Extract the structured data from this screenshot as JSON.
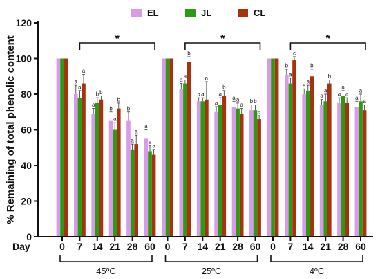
{
  "chart_data": {
    "type": "bar",
    "ylabel": "% Remaining of total phenolic content",
    "ylim": [
      0,
      120
    ],
    "yticks": [
      0,
      20,
      40,
      60,
      80,
      100,
      120
    ],
    "day_label": "Day",
    "series": [
      {
        "name": "EL",
        "color": "#d79bea"
      },
      {
        "name": "JL",
        "color": "#2c9b14"
      },
      {
        "name": "CL",
        "color": "#a8320e"
      }
    ],
    "groups": [
      {
        "temperature": "45ºC",
        "days": [
          "0",
          "7",
          "14",
          "21",
          "28",
          "60"
        ],
        "values": [
          [
            100,
            100,
            100
          ],
          [
            80,
            78,
            86
          ],
          [
            69,
            75,
            77
          ],
          [
            65,
            60,
            72
          ],
          [
            65,
            49,
            52
          ],
          [
            55,
            48,
            46
          ]
        ],
        "errors": [
          [
            0,
            0,
            0
          ],
          [
            5,
            4,
            5
          ],
          [
            3,
            3,
            2
          ],
          [
            5,
            4,
            3
          ],
          [
            5,
            3,
            5
          ],
          [
            5,
            3,
            3
          ]
        ],
        "letters": [
          [
            "",
            "",
            ""
          ],
          [
            "a",
            "a",
            "a"
          ],
          [
            "a",
            "b",
            "b"
          ],
          [
            "b",
            "a",
            "b"
          ],
          [
            "b",
            "a",
            "a"
          ],
          [
            "a",
            "a",
            "a"
          ]
        ],
        "significance": "*"
      },
      {
        "temperature": "25ºC",
        "days": [
          "0",
          "7",
          "14",
          "21",
          "28",
          "60"
        ],
        "values": [
          [
            100,
            100,
            100
          ],
          [
            83,
            86,
            98
          ],
          [
            76,
            76,
            77
          ],
          [
            70,
            74,
            79
          ],
          [
            73,
            72,
            69
          ],
          [
            71,
            71,
            66
          ]
        ],
        "errors": [
          [
            0,
            0,
            0
          ],
          [
            3,
            2,
            3
          ],
          [
            2,
            2,
            10
          ],
          [
            3,
            4,
            3
          ],
          [
            3,
            3,
            3
          ],
          [
            3,
            3,
            2
          ]
        ],
        "letters": [
          [
            "",
            "",
            ""
          ],
          [
            "a",
            "a",
            "b"
          ],
          [
            "a",
            "a",
            "a"
          ],
          [
            "a",
            "a",
            "b"
          ],
          [
            "a",
            "a",
            "a"
          ],
          [
            "b",
            "b",
            "a"
          ]
        ],
        "significance": "*"
      },
      {
        "temperature": "4ºC",
        "days": [
          "0",
          "7",
          "14",
          "21",
          "28",
          "60"
        ],
        "values": [
          [
            100,
            100,
            100
          ],
          [
            91,
            86,
            99
          ],
          [
            80,
            82,
            90
          ],
          [
            74,
            76,
            86
          ],
          [
            75,
            79,
            75
          ],
          [
            73,
            76,
            71
          ]
        ],
        "errors": [
          [
            0,
            0,
            0
          ],
          [
            3,
            3,
            2
          ],
          [
            3,
            3,
            4
          ],
          [
            3,
            4,
            2
          ],
          [
            3,
            3,
            3
          ],
          [
            3,
            4,
            3
          ]
        ],
        "letters": [
          [
            "",
            "",
            ""
          ],
          [
            "b",
            "a",
            "c"
          ],
          [
            "a",
            "a",
            "b"
          ],
          [
            "a",
            "a",
            "b"
          ],
          [
            "a",
            "a",
            "a"
          ],
          [
            "a",
            "a",
            "a"
          ]
        ],
        "significance": "*"
      }
    ]
  }
}
